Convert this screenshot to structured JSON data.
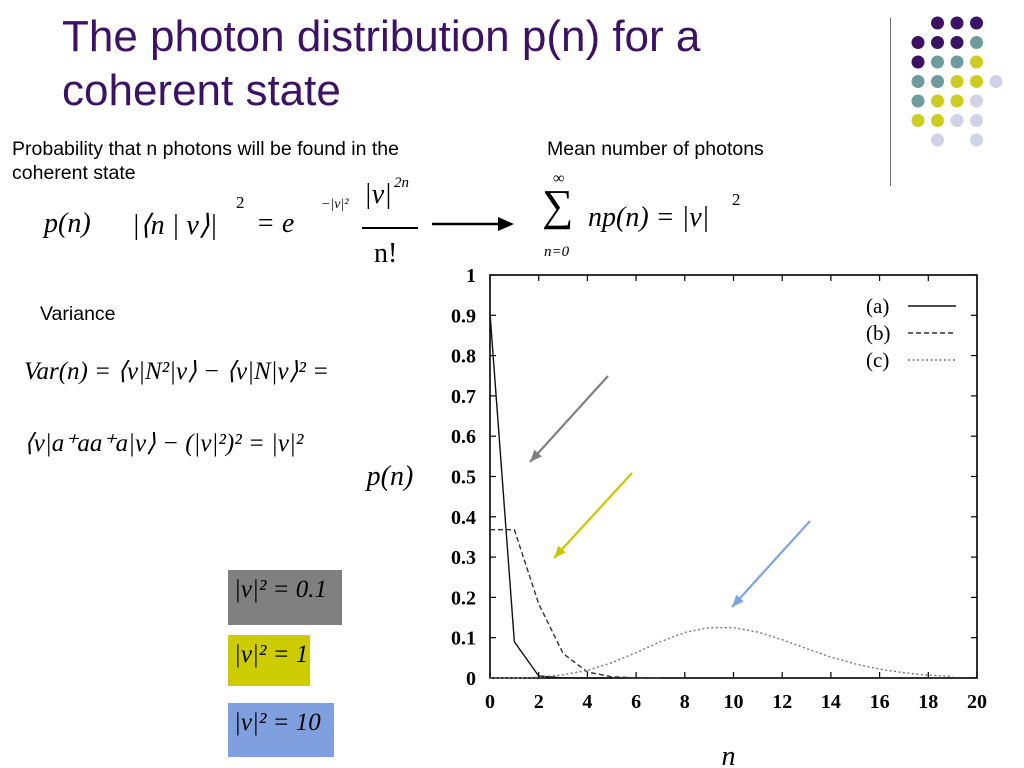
{
  "slide": {
    "title": "The photon distribution p(n) for a coherent state",
    "probability_label": "Probability that n photons will be found in the coherent state",
    "mean_label": "Mean number of photons",
    "variance_label": "Variance"
  },
  "equations": {
    "pn": {
      "lhs": "p(n)",
      "mid": "|⟨n | v⟩|",
      "sq": "2",
      "eq": "= e",
      "exp": "−|v|²",
      "num": "|v|",
      "num_sup": "2n",
      "den": "n!"
    },
    "mean": {
      "sum": "∑",
      "top": "∞",
      "bottom": "n=0",
      "body": "np(n) = |v|",
      "sq": "2"
    },
    "var1": "Var(n) = ⟨v|N²|v⟩ − ⟨v|N|v⟩² =",
    "var2": "⟨v|a⁺aa⁺a|v⟩ − (|v|²)² = |v|²"
  },
  "legend_boxes": [
    {
      "label": "|v|² = 0.1",
      "color": "#808080"
    },
    {
      "label": "|v|² = 1",
      "color": "#cccc00"
    },
    {
      "label": "|v|² = 10",
      "color": "#7f9fdf"
    }
  ],
  "arrow_colors": [
    "#7f7f7f",
    "#c8c800",
    "#7fa3e0"
  ],
  "decor_dot_colors": {
    "purple": "#3b1264",
    "teal": "#6e9b9b",
    "yellow": "#cccc22",
    "lavender": "#d2d2e6"
  },
  "chart_data": {
    "type": "line",
    "xlabel": "n",
    "ylabel": "p(n)",
    "xlim": [
      0,
      20
    ],
    "ylim": [
      0,
      1
    ],
    "xticks": [
      "0",
      "2",
      "4",
      "6",
      "8",
      "10",
      "12",
      "14",
      "16",
      "18",
      "20"
    ],
    "yticks": [
      "0",
      "0.1",
      "0.2",
      "0.3",
      "0.4",
      "0.5",
      "0.6",
      "0.7",
      "0.8",
      "0.9",
      "1"
    ],
    "legend_position": "top-right",
    "series": [
      {
        "name": "(a)",
        "style": "solid",
        "x": [
          0,
          1,
          2,
          3,
          4,
          5
        ],
        "y": [
          0.905,
          0.09,
          0.005,
          0.0002,
          0,
          0
        ]
      },
      {
        "name": "(b)",
        "style": "dashed",
        "x": [
          0,
          1,
          2,
          3,
          4,
          5,
          6,
          7
        ],
        "y": [
          0.368,
          0.368,
          0.184,
          0.061,
          0.015,
          0.003,
          0.0005,
          0
        ]
      },
      {
        "name": "(c)",
        "style": "dotted",
        "x": [
          0,
          1,
          2,
          3,
          4,
          5,
          6,
          7,
          8,
          9,
          10,
          11,
          12,
          13,
          14,
          15,
          16,
          17,
          18,
          19
        ],
        "y": [
          0,
          0,
          0.002,
          0.008,
          0.019,
          0.038,
          0.063,
          0.09,
          0.113,
          0.125,
          0.125,
          0.114,
          0.095,
          0.073,
          0.052,
          0.035,
          0.022,
          0.013,
          0.007,
          0.004
        ]
      }
    ]
  }
}
